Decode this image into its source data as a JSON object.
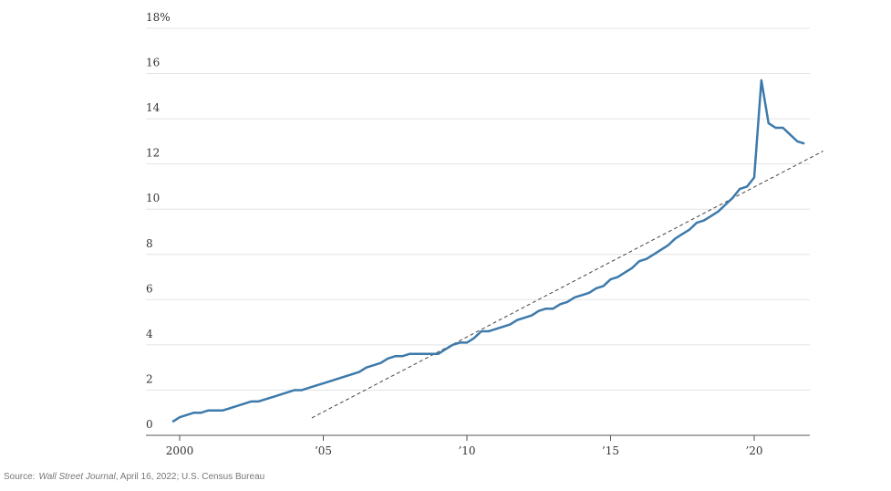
{
  "chart_data": {
    "type": "line",
    "x": [
      1999.75,
      2000.0,
      2000.25,
      2000.5,
      2000.75,
      2001.0,
      2001.25,
      2001.5,
      2001.75,
      2002.0,
      2002.25,
      2002.5,
      2002.75,
      2003.0,
      2003.25,
      2003.5,
      2003.75,
      2004.0,
      2004.25,
      2004.5,
      2004.75,
      2005.0,
      2005.25,
      2005.5,
      2005.75,
      2006.0,
      2006.25,
      2006.5,
      2006.75,
      2007.0,
      2007.25,
      2007.5,
      2007.75,
      2008.0,
      2008.25,
      2008.5,
      2008.75,
      2009.0,
      2009.25,
      2009.5,
      2009.75,
      2010.0,
      2010.25,
      2010.5,
      2010.75,
      2011.0,
      2011.25,
      2011.5,
      2011.75,
      2012.0,
      2012.25,
      2012.5,
      2012.75,
      2013.0,
      2013.25,
      2013.5,
      2013.75,
      2014.0,
      2014.25,
      2014.5,
      2014.75,
      2015.0,
      2015.25,
      2015.5,
      2015.75,
      2016.0,
      2016.25,
      2016.5,
      2016.75,
      2017.0,
      2017.25,
      2017.5,
      2017.75,
      2018.0,
      2018.25,
      2018.5,
      2018.75,
      2019.0,
      2019.25,
      2019.5,
      2019.75,
      2020.0,
      2020.25,
      2020.5,
      2020.75,
      2021.0,
      2021.25,
      2021.5,
      2021.75
    ],
    "series": [
      {
        "color": "#3d7aab",
        "values": [
          0.6,
          0.8,
          0.9,
          1.0,
          1.0,
          1.1,
          1.1,
          1.1,
          1.2,
          1.3,
          1.4,
          1.5,
          1.5,
          1.6,
          1.7,
          1.8,
          1.9,
          2.0,
          2.0,
          2.1,
          2.2,
          2.3,
          2.4,
          2.5,
          2.6,
          2.7,
          2.8,
          3.0,
          3.1,
          3.2,
          3.4,
          3.5,
          3.5,
          3.6,
          3.6,
          3.6,
          3.6,
          3.6,
          3.8,
          4.0,
          4.1,
          4.1,
          4.3,
          4.6,
          4.6,
          4.7,
          4.8,
          4.9,
          5.1,
          5.2,
          5.3,
          5.5,
          5.6,
          5.6,
          5.8,
          5.9,
          6.1,
          6.2,
          6.3,
          6.5,
          6.6,
          6.9,
          7.0,
          7.2,
          7.4,
          7.7,
          7.8,
          8.0,
          8.2,
          8.4,
          8.7,
          8.9,
          9.1,
          9.4,
          9.5,
          9.7,
          9.9,
          10.2,
          10.5,
          10.9,
          11.0,
          11.4,
          15.7,
          13.8,
          13.6,
          13.6,
          13.3,
          13.0,
          12.9
        ]
      }
    ],
    "trend_line": {
      "x": [
        2004.6,
        2022.4
      ],
      "values": [
        0.77,
        12.57
      ],
      "color": "#444444"
    },
    "xlim": [
      1998.825,
      2021.937
    ],
    "xticks": [
      2000,
      {
        "value": 2005,
        "label": "’05"
      },
      {
        "value": 2010,
        "label": "’10"
      },
      {
        "value": 2015,
        "label": "’15"
      },
      {
        "value": 2020,
        "label": "’20"
      }
    ],
    "ylim": [
      0,
      18
    ],
    "yticks": [
      0,
      2,
      4,
      6,
      8,
      10,
      12,
      14,
      16,
      {
        "value": 18,
        "label": "18%"
      }
    ],
    "grid": true,
    "source": {
      "prefix": "Source:",
      "publication": "Wall Street Journal",
      "rest": ", April 16, 2022; U.S. Census Bureau"
    }
  }
}
